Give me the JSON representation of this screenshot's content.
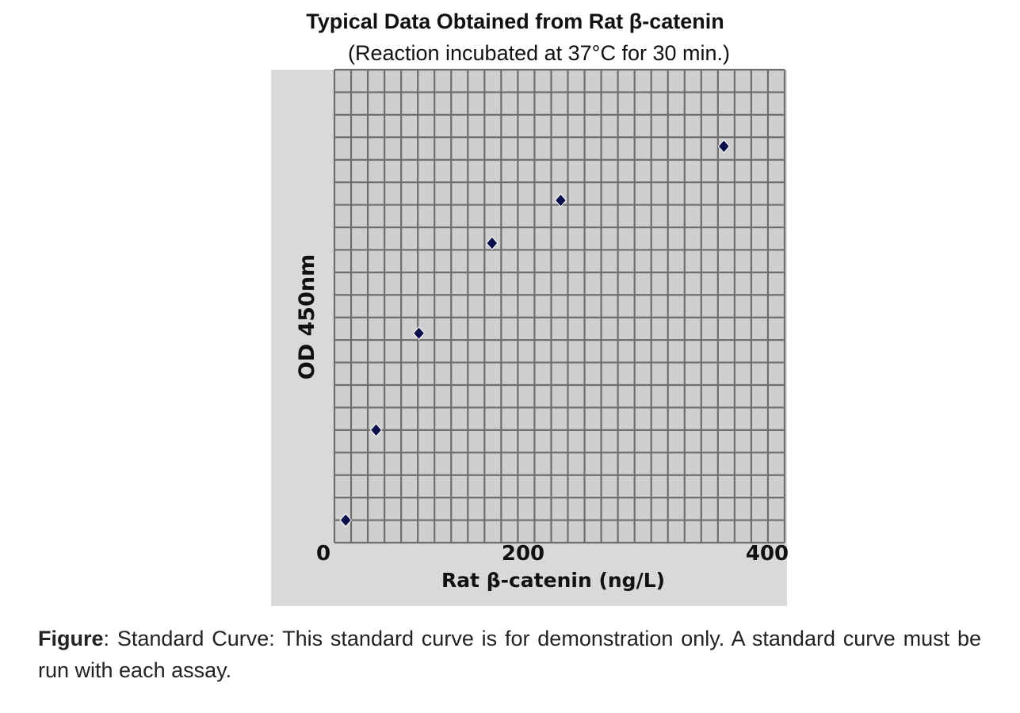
{
  "chart_data": {
    "type": "scatter",
    "title": "Typical Data Obtained from Rat β-catenin",
    "subtitle": "(Reaction incubated at 37°C for 30 min.)",
    "xlabel": "Rat β-catenin (ng/L)",
    "ylabel": "OD 450nm",
    "xlim": [
      0,
      400
    ],
    "ylim": [
      0,
      21
    ],
    "y_units_note": "relative grid units (no y tick labels shown)",
    "xticks": [
      "0",
      "200",
      "400"
    ],
    "grid": true,
    "marker_color": "#0a0f4a",
    "points": [
      {
        "x": 10,
        "y": 1.0
      },
      {
        "x": 37,
        "y": 5.0
      },
      {
        "x": 75,
        "y": 9.3
      },
      {
        "x": 140,
        "y": 13.3
      },
      {
        "x": 201,
        "y": 15.2
      },
      {
        "x": 346,
        "y": 17.6
      }
    ]
  },
  "caption": {
    "label": "Figure",
    "text": ": Standard Curve: This standard curve is for demonstration only. A standard curve must be run with each assay."
  }
}
